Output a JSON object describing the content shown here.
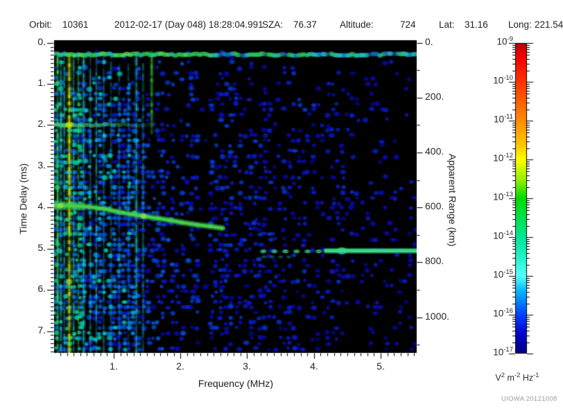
{
  "header": {
    "orbit_label": "Orbit:",
    "orbit_value": "10361",
    "datetime": "2012-02-17 (Day 048) 18:28:04.991",
    "sza_label": "SZA:",
    "sza_value": "76.37",
    "altitude_label": "Altitude:",
    "altitude_value": "724",
    "lat_label": "Lat:",
    "lat_value": "31.16",
    "long_label": "Long:",
    "long_value": "221.54"
  },
  "watermark": "UIOWA 20121008",
  "chart_data": {
    "type": "heatmap",
    "subtype": "radar sounder spectrogram (ionogram)",
    "x_axis": {
      "label": "Frequency (MHz)",
      "range": [
        0.107,
        5.54
      ],
      "major_ticks": [
        1,
        2,
        3,
        4,
        5
      ],
      "minor_step": 0.1
    },
    "y_axis": {
      "label": "Time Delay (ms)",
      "range": [
        -0.06,
        7.53
      ],
      "major_ticks": [
        0,
        1,
        2,
        3,
        4,
        5,
        6,
        7
      ],
      "minor_step": 0.1
    },
    "y2_axis": {
      "label": "Apparent Range (km)",
      "major_ticks": [
        0,
        200,
        400,
        600,
        800,
        1000
      ],
      "minor_step": 100,
      "minor_max": 1100,
      "km_per_ms": 150
    },
    "colorbar": {
      "exponents": [
        -9,
        -10,
        -11,
        -12,
        -13,
        -14,
        -15,
        -16,
        -17
      ],
      "unit_parts": [
        [
          "V",
          "2"
        ],
        [
          "m",
          "-2"
        ],
        [
          "Hz",
          "-1"
        ]
      ],
      "stops": [
        [
          0,
          "#b40000"
        ],
        [
          0.04,
          "#f00000"
        ],
        [
          0.125,
          "#ff3200"
        ],
        [
          0.25,
          "#ff8c00"
        ],
        [
          0.33,
          "#ffc800"
        ],
        [
          0.375,
          "#ffff00"
        ],
        [
          0.44,
          "#96f000"
        ],
        [
          0.5,
          "#00dc00"
        ],
        [
          0.625,
          "#00e696"
        ],
        [
          0.7,
          "#28f5d2"
        ],
        [
          0.75,
          "#5affff"
        ],
        [
          0.8,
          "#00b4ff"
        ],
        [
          0.875,
          "#0041ff"
        ],
        [
          0.94,
          "#0000c8"
        ],
        [
          1,
          "#000082"
        ]
      ]
    },
    "background": "#000000",
    "speckle_palette": [
      {
        "min": 0.92,
        "color": "#00e6b4"
      },
      {
        "min": 0.8,
        "color": "#00d2f0"
      },
      {
        "min": 0.68,
        "color": "#0096ff"
      },
      {
        "min": 0.55,
        "color": "#0064ff"
      },
      {
        "min": 0.42,
        "color": "#0041f0"
      },
      {
        "min": 0.28,
        "color": "#0a1edc"
      },
      {
        "min": 0.15,
        "color": "#0a0ac8"
      },
      {
        "min": 0,
        "color": "#000a96"
      }
    ],
    "noise": {
      "seed": 20121008,
      "cell": [
        7,
        7.5
      ],
      "t_profile": [
        [
          0,
          0
        ],
        [
          0.18,
          0
        ],
        [
          0.45,
          0.18
        ],
        [
          0.8,
          0.5
        ],
        [
          1.5,
          0.78
        ],
        [
          2.5,
          0.92
        ],
        [
          3.5,
          1
        ],
        [
          7.53,
          1
        ]
      ],
      "zones": [
        {
          "f": [
            0.107,
            0.55
          ],
          "d": 0.95,
          "bright": 0.8
        },
        {
          "f": [
            0.55,
            0.95
          ],
          "d": 0.85,
          "bright": 0.66
        },
        {
          "f": [
            0.95,
            1.35
          ],
          "d": 0.66,
          "bright": 0.55
        },
        {
          "f": [
            1.35,
            1.8
          ],
          "d": 0.52,
          "bright": 0.45
        },
        {
          "f": [
            1.8,
            2.29
          ],
          "d": 0.34,
          "bright": 0.4
        },
        {
          "f": [
            2.29,
            2.43
          ],
          "d": 0.07,
          "bright": 0.32
        },
        {
          "f": [
            2.43,
            3.2
          ],
          "d": 0.42,
          "bright": 0.36
        },
        {
          "f": [
            3.2,
            3.9
          ],
          "d": 0.35,
          "bright": 0.33
        },
        {
          "f": [
            3.9,
            4.62
          ],
          "d": 0.28,
          "bright": 0.31
        },
        {
          "f": [
            4.62,
            4.78
          ],
          "d": 0.13,
          "bright": 0.3
        },
        {
          "f": [
            4.78,
            5.25
          ],
          "d": 0.23,
          "bright": 0.3
        },
        {
          "f": [
            5.25,
            5.42
          ],
          "d": 0.12,
          "bright": 0.28
        },
        {
          "f": [
            5.42,
            5.54
          ],
          "d": 0.2,
          "bright": 0.3
        }
      ]
    },
    "features": {
      "top_band": {
        "t": 0.29,
        "f": [
          0.107,
          5.54
        ],
        "green_dominant_below_f": 2.6,
        "colors": {
          "green": "#2ed25a",
          "bright": "#5ae65a",
          "cyan": "#28c8c8",
          "blue": "#1478dc"
        }
      },
      "band_2ms": {
        "t": 2.0,
        "f": [
          0.107,
          1.6
        ],
        "color": "#46c86e",
        "hot_f": 0.335,
        "hot_color": "#c8dc00"
      },
      "ionosphere_trace": {
        "color": "#46d24b",
        "hot_color": "#8ce63c",
        "points": [
          [
            0.11,
            3.95
          ],
          [
            0.35,
            3.96
          ],
          [
            0.6,
            3.98
          ],
          [
            0.85,
            4.03
          ],
          [
            1.05,
            4.1
          ],
          [
            1.25,
            4.16
          ],
          [
            1.45,
            4.21
          ],
          [
            1.65,
            4.26
          ],
          [
            1.85,
            4.31
          ],
          [
            2.05,
            4.37
          ],
          [
            2.25,
            4.42
          ],
          [
            2.45,
            4.46
          ],
          [
            2.62,
            4.5
          ]
        ],
        "hot_points": [
          [
            0.2,
            3.96
          ],
          [
            1.45,
            4.21
          ]
        ]
      },
      "surface_trace": {
        "t": 5.05,
        "color": "#3cdc8c",
        "dash_f": [
          3.2,
          4.18
        ],
        "solid_f": [
          4.18,
          5.54
        ],
        "blob_f": 4.42,
        "faint": {
          "t": 5.2,
          "f": [
            3.25,
            3.65
          ],
          "color": "#28b4c8"
        }
      },
      "stripes": [
        [
          0.16,
          2.5,
          "#3cd24b",
          0.85,
          0.25,
          7.53
        ],
        [
          0.21,
          2,
          "#28c8dc",
          0.6,
          0.25,
          7.53
        ],
        [
          0.26,
          2,
          "#28c8dc",
          0.5,
          0.25,
          7.53
        ],
        [
          0.335,
          3,
          "#b4dc00",
          0.95,
          0.25,
          7.53
        ],
        [
          0.4,
          2,
          "#28d2c8",
          0.55,
          0.25,
          7.53
        ],
        [
          0.47,
          2,
          "#3cd24b",
          0.45,
          0.25,
          7.53
        ],
        [
          0.55,
          2.5,
          "#28c8dc",
          0.6,
          0.25,
          7.53
        ],
        [
          0.65,
          2,
          "#28c8dc",
          0.4,
          0.3,
          7.53
        ],
        [
          0.74,
          2,
          "#28c8dc",
          0.5,
          0.3,
          7.53
        ],
        [
          0.85,
          2,
          "#28c8dc",
          0.35,
          0.3,
          7.53
        ],
        [
          0.96,
          2,
          "#28c8dc",
          0.3,
          0.3,
          7.53
        ],
        [
          1.08,
          2,
          "#28c8dc",
          0.25,
          0.5,
          7.53
        ],
        [
          1.22,
          2,
          "#28c8dc",
          0.25,
          0.5,
          7.53
        ],
        [
          1.34,
          2.5,
          "#28d2dc",
          0.55,
          0.3,
          7.53
        ],
        [
          1.44,
          2,
          "#28d2dc",
          0.35,
          0.5,
          7.53
        ],
        [
          1.57,
          2.5,
          "#3cd24b",
          0.75,
          0.2,
          2.2
        ]
      ],
      "low_blobs": [
        {
          "f": 0.335,
          "t": 5.8,
          "color": "#a0d216"
        }
      ]
    }
  }
}
